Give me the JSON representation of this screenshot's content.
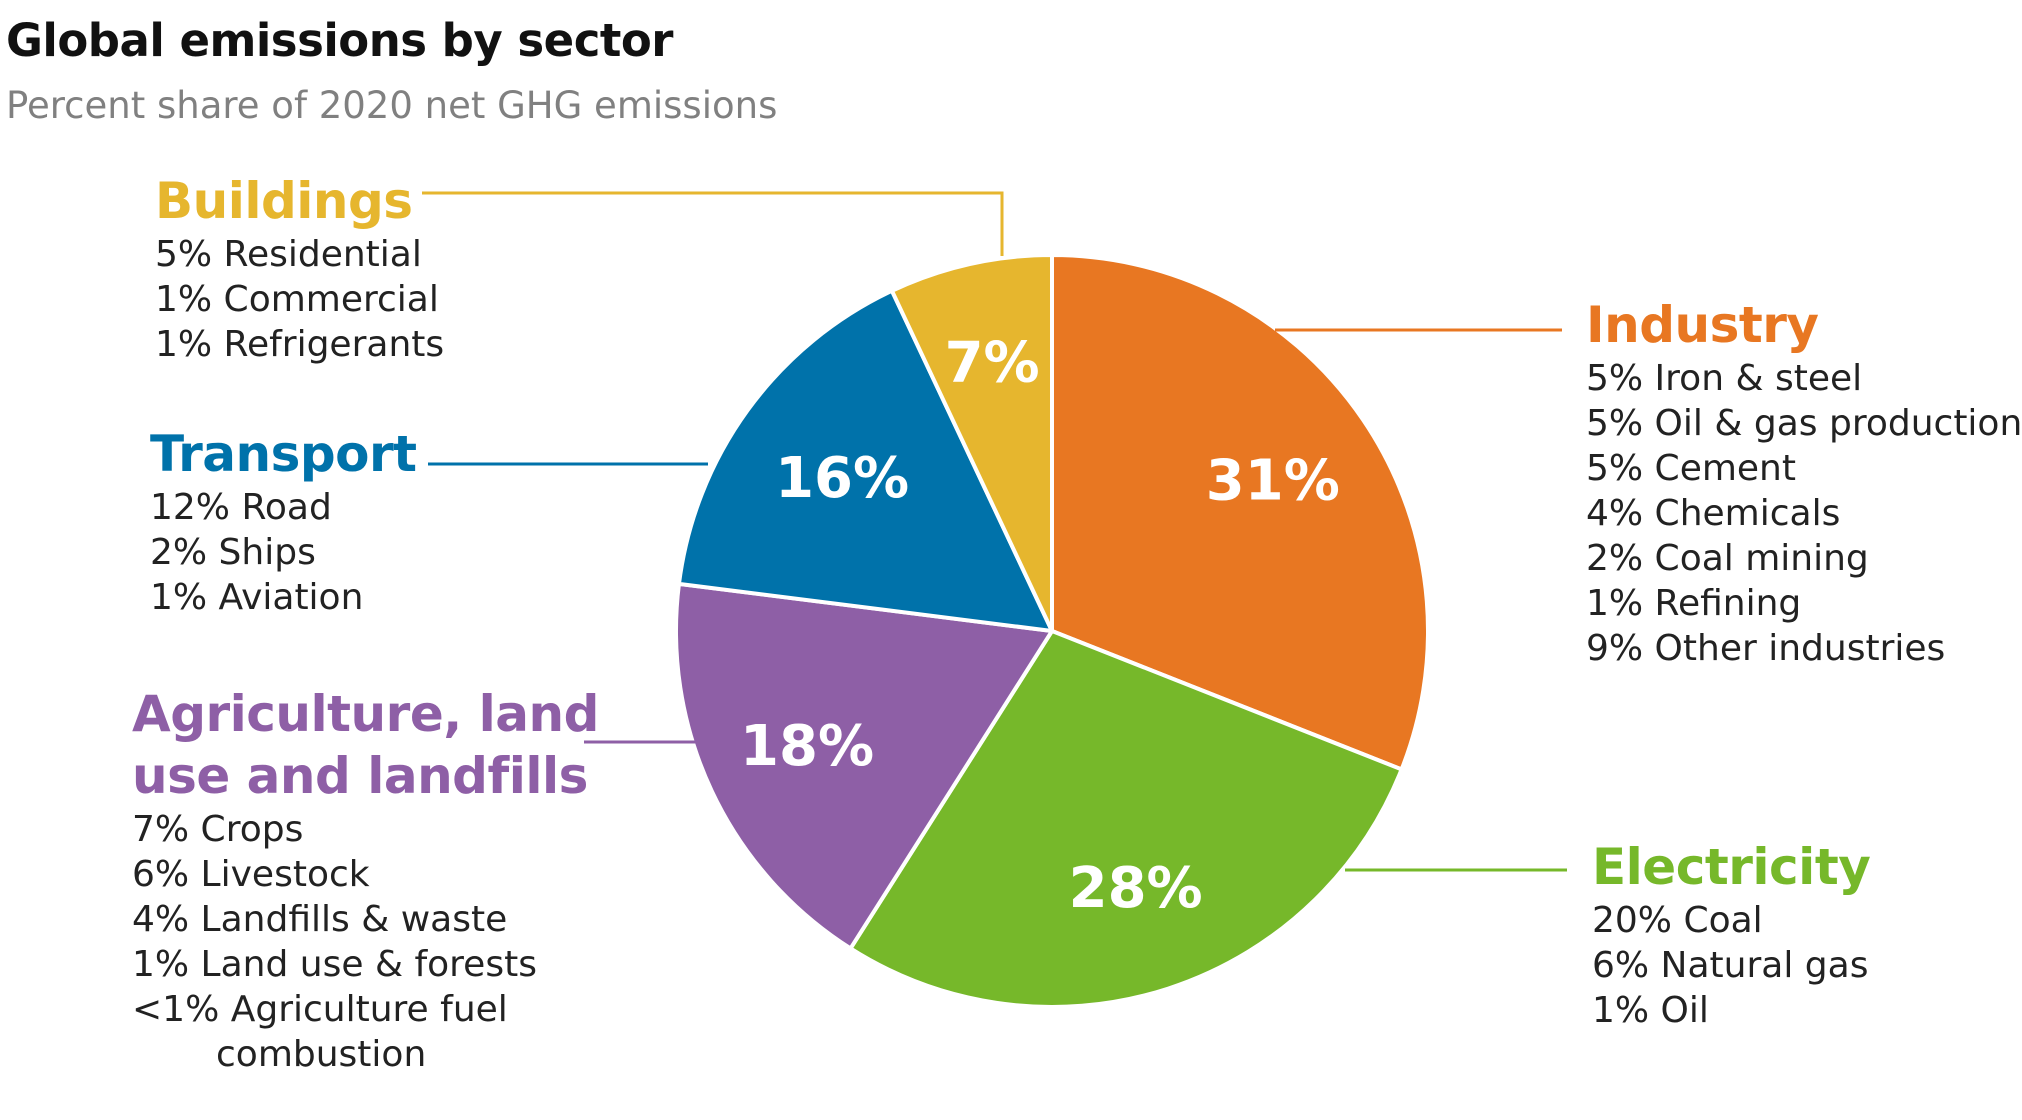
{
  "title": "Global emissions by sector",
  "subtitle": "Percent share of 2020 net GHG emissions",
  "chart_data": {
    "type": "pie",
    "title": "Global emissions by sector",
    "subtitle": "Percent share of 2020 net GHG emissions",
    "slices": [
      {
        "name": "Industry",
        "value": 31,
        "label": "31%",
        "color": "#E87722"
      },
      {
        "name": "Electricity",
        "value": 28,
        "label": "28%",
        "color": "#76B82A"
      },
      {
        "name": "Agriculture, land use and landfills",
        "value": 18,
        "label": "18%",
        "color": "#8E5FA6"
      },
      {
        "name": "Transport",
        "value": 16,
        "label": "16%",
        "color": "#0072AA"
      },
      {
        "name": "Buildings",
        "value": 7,
        "label": "7%",
        "color": "#E6B62E"
      }
    ]
  },
  "groups": {
    "buildings": {
      "title": "Buildings",
      "color": "#E6B62E",
      "items": [
        "5% Residential",
        "1% Commercial",
        "1% Refrigerants"
      ]
    },
    "transport": {
      "title": "Transport",
      "color": "#0072AA",
      "items": [
        "12% Road",
        "2% Ships",
        "1% Aviation"
      ]
    },
    "agriculture": {
      "title_line1": "Agriculture, land",
      "title_line2": "use and landfills",
      "color": "#8E5FA6",
      "items": [
        "7% Crops",
        "6% Livestock",
        "4% Landfills & waste",
        "1% Land use & forests",
        "<1% Agriculture fuel",
        "combustion"
      ]
    },
    "industry": {
      "title": "Industry",
      "color": "#E87722",
      "items": [
        "5% Iron & steel",
        "5% Oil & gas production",
        "5% Cement",
        "4% Chemicals",
        "2% Coal mining",
        "1% Refining",
        "9% Other industries"
      ]
    },
    "electricity": {
      "title": "Electricity",
      "color": "#76B82A",
      "items": [
        "20% Coal",
        "6% Natural gas",
        "1% Oil"
      ]
    }
  }
}
